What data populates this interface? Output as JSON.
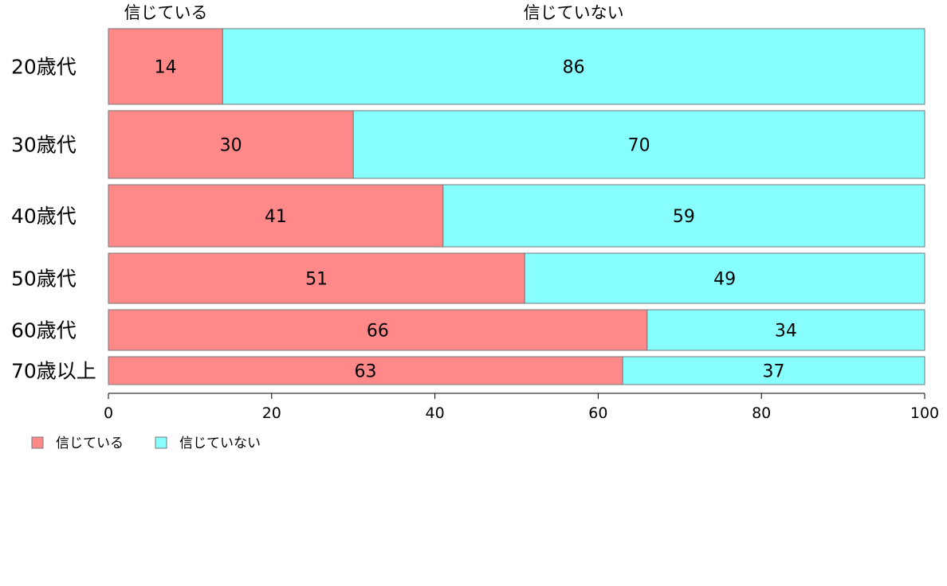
{
  "chart_data": {
    "type": "bar",
    "orientation": "horizontal",
    "stacked": true,
    "categories": [
      "20歳代",
      "30歳代",
      "40歳代",
      "50歳代",
      "60歳代",
      "70歳以上"
    ],
    "series": [
      {
        "name": "信じている",
        "color": "#FF8888",
        "values": [
          14,
          30,
          41,
          51,
          66,
          63
        ]
      },
      {
        "name": "信じていない",
        "color": "#88FFFF",
        "values": [
          86,
          70,
          59,
          49,
          34,
          37
        ]
      }
    ],
    "bar_weights": [
      95,
      85,
      78,
      63,
      51,
      35
    ],
    "xlim": [
      0,
      100
    ],
    "xticks": [
      0,
      20,
      40,
      60,
      80,
      100
    ],
    "top_labels": [
      "信じている",
      "信じていない"
    ],
    "legend_position": "bottom-left",
    "grid": false
  }
}
